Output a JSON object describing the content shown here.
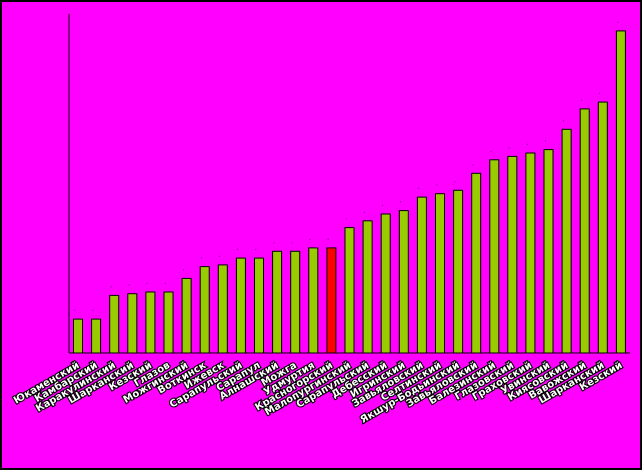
{
  "chart_data": {
    "type": "bar",
    "title": "",
    "xlabel": "",
    "ylabel": "",
    "ylim": [
      0,
      100
    ],
    "grid": false,
    "legend": "none",
    "categories": [
      "Юкаменский",
      "Камбарский",
      "Каракулинский",
      "Шарканский",
      "Кезский",
      "Глазов",
      "Можгинский",
      "Воткинск",
      "Ижевск",
      "Сарапульский",
      "Сарапул",
      "Алнашский",
      "Можга",
      "Удмуртия",
      "Красногорский",
      "Малопургинский",
      "Сарапульский",
      "Дебесский",
      "Игринский",
      "Завьяловский",
      "Селтинский",
      "Якшур-Бодьинский",
      "Завьяловский",
      "Балезинский",
      "Глазовский",
      "Граховский",
      "Увинский",
      "Киясовский",
      "Вавожский",
      "Шарканский",
      "Кезский"
    ],
    "values": [
      10,
      10,
      17,
      17.5,
      18,
      18,
      22,
      25.5,
      26,
      28,
      28,
      30,
      30,
      31,
      31,
      37,
      39,
      41,
      42,
      46,
      47,
      48,
      53,
      57,
      58,
      59,
      60,
      66,
      72,
      74,
      95
    ],
    "highlight_index": 14,
    "colors": {
      "bar": "#99cc00",
      "highlight": "#ff0000",
      "bar_outline": "#000000",
      "background": "#ff00ff",
      "frame": "#000000",
      "label_fill": "#ffffff",
      "label_outline": "#000000"
    }
  }
}
